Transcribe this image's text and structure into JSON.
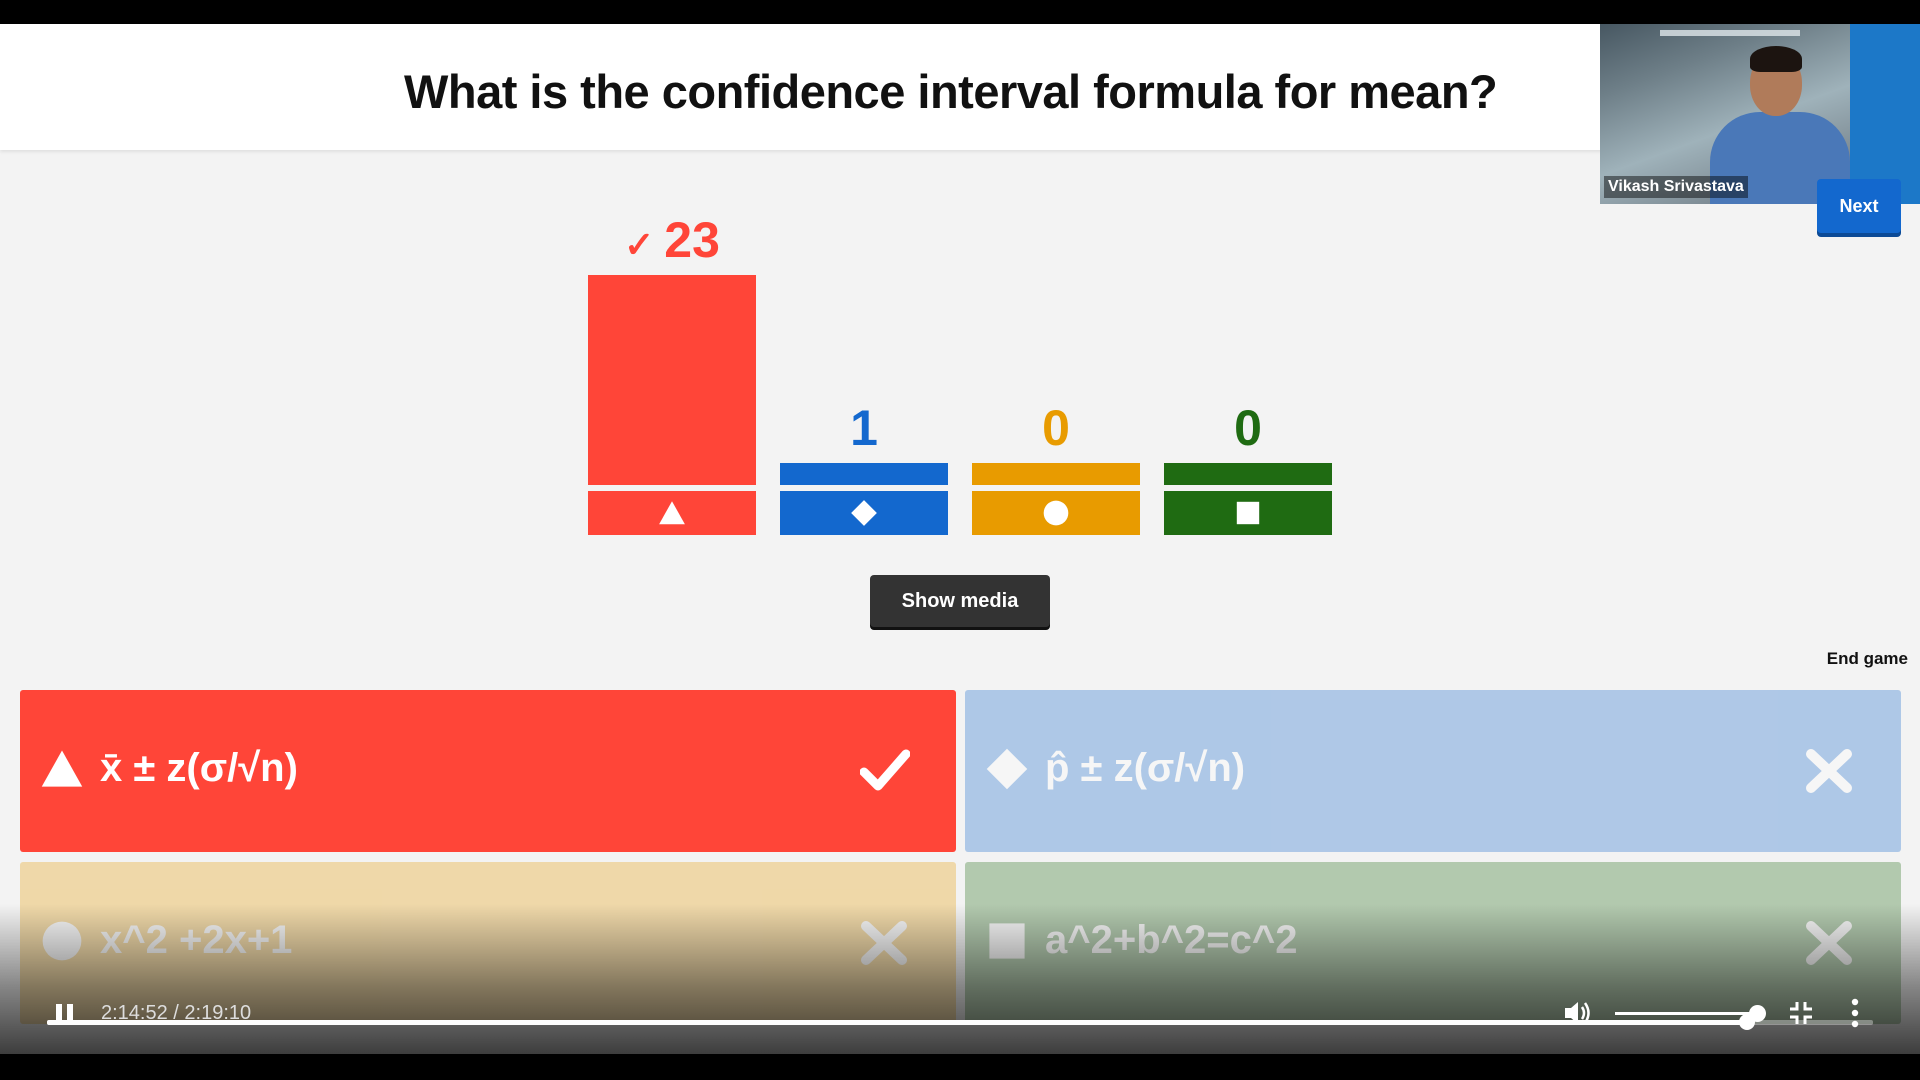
{
  "question": {
    "title": "What is the confidence interval formula for mean?"
  },
  "webcam": {
    "name": "Vikash Srivastava"
  },
  "controls_top": {
    "next_label": "Next"
  },
  "chart_data": {
    "type": "bar",
    "categories": [
      "triangle",
      "diamond",
      "circle",
      "square"
    ],
    "values": [
      23,
      1,
      0,
      0
    ],
    "colors": [
      "#ff4538",
      "#1368ce",
      "#e89b00",
      "#1f6b12"
    ],
    "correct_index": 0,
    "labels": [
      "23",
      "1",
      "0",
      "0"
    ]
  },
  "buttons": {
    "show_media": "Show media",
    "end_game": "End game"
  },
  "answers": [
    {
      "text": "x̄ ± z(σ/√n)",
      "shape": "triangle",
      "color": "#ff4538",
      "correct": true
    },
    {
      "text": "p̂ ± z(σ/√n)",
      "shape": "diamond",
      "color": "#1368ce",
      "correct": false
    },
    {
      "text": "x^2 +2x+1",
      "shape": "circle",
      "color": "#e89b00",
      "correct": false
    },
    {
      "text": "a^2+b^2=c^2",
      "shape": "square",
      "color": "#1f6b12",
      "correct": false
    }
  ],
  "video": {
    "time": "2:14:52 / 2:19:10",
    "progress": 0.931,
    "volume": 1.0
  }
}
